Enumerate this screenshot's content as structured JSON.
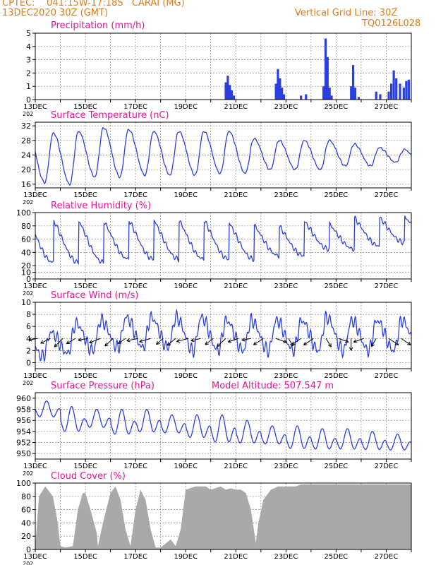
{
  "header": {
    "agency": "CPTEC:",
    "location": "041:15W-17:18S   CARAI (MG)",
    "init_time": "13DEC2020 30Z (GMT)",
    "grid_note": "Vertical Grid Line: 30Z",
    "model_code": "TQ0126L028"
  },
  "x_axis": {
    "day_labels": [
      "13DEC",
      "15DEC",
      "17DEC",
      "19DEC",
      "21DEC",
      "23DEC",
      "25DEC",
      "27DEC"
    ],
    "year_label": "202",
    "start_day": 13,
    "end_day": 28
  },
  "colors": {
    "line": "#2b3fe0",
    "title": "#e8149a",
    "header": "#e07b1a",
    "cloud": "#a9a9a9",
    "grid": "#888888",
    "arrow": "#000000"
  },
  "chart_data": [
    {
      "type": "bar",
      "title": "Precipitation (mm/h)",
      "ylim": [
        0,
        5
      ],
      "y_ticks": [
        "0",
        "1",
        "2",
        "3",
        "4",
        "5"
      ],
      "x_unit": "day of December 2020",
      "points": [
        [
          20.6,
          1.3
        ],
        [
          20.68,
          1.8
        ],
        [
          20.76,
          1.1
        ],
        [
          20.84,
          0.7
        ],
        [
          20.92,
          0.3
        ],
        [
          22.6,
          1.2
        ],
        [
          22.68,
          2.3
        ],
        [
          22.76,
          1.6
        ],
        [
          22.84,
          0.9
        ],
        [
          22.92,
          0.4
        ],
        [
          23.6,
          0.3
        ],
        [
          23.8,
          0.4
        ],
        [
          24.5,
          1.0
        ],
        [
          24.58,
          4.6
        ],
        [
          24.66,
          3.2
        ],
        [
          24.74,
          0.9
        ],
        [
          24.82,
          0.3
        ],
        [
          25.6,
          1.0
        ],
        [
          25.68,
          2.6
        ],
        [
          25.76,
          0.9
        ],
        [
          25.9,
          0.2
        ],
        [
          26.6,
          0.6
        ],
        [
          26.76,
          0.4
        ],
        [
          27.1,
          0.6
        ],
        [
          27.2,
          1.2
        ],
        [
          27.3,
          2.2
        ],
        [
          27.4,
          1.6
        ],
        [
          27.55,
          1.2
        ],
        [
          27.7,
          0.9
        ],
        [
          27.8,
          1.4
        ],
        [
          27.9,
          1.5
        ]
      ]
    },
    {
      "type": "line",
      "title": "Surface Temperature (nC)",
      "ylim": [
        15,
        33
      ],
      "y_ticks": [
        "16",
        "20",
        "24",
        "28",
        "32"
      ],
      "x_unit": "day of December 2020",
      "daily_min": [
        16.5,
        16,
        18,
        18,
        18.5,
        18.5,
        18.5,
        19,
        19,
        20,
        20,
        20,
        21,
        21,
        22,
        21
      ],
      "daily_max": [
        30,
        30.5,
        31.5,
        31,
        30.5,
        30.5,
        30.5,
        30.5,
        28.5,
        28,
        28,
        28,
        27,
        26,
        25.5
      ]
    },
    {
      "type": "line",
      "title": "Relative Humidity (%)",
      "ylim": [
        0,
        100
      ],
      "y_ticks": [
        "0",
        "10",
        "20",
        "40",
        "60",
        "80",
        "100"
      ],
      "x_unit": "day of December 2020",
      "daily_min": [
        25,
        25,
        25,
        30,
        30,
        30,
        30,
        30,
        30,
        35,
        35,
        45,
        45,
        50,
        55,
        60
      ],
      "daily_max": [
        100,
        100,
        98,
        100,
        100,
        100,
        100,
        95,
        90,
        88,
        95,
        90,
        100,
        100,
        100
      ]
    },
    {
      "type": "line",
      "title": "Surface Wind (m/s)",
      "ylim": [
        -1,
        10
      ],
      "y_ticks": [
        "0",
        "2",
        "4",
        "6",
        "8",
        "10"
      ],
      "x_unit": "day of December 2020",
      "speed_min": [
        1,
        1.5,
        2,
        2.5,
        2.5,
        2.5,
        2,
        2,
        2,
        2,
        2,
        2,
        2,
        2,
        2,
        2
      ],
      "speed_max": [
        5,
        6.5,
        7,
        7.5,
        7.5,
        7.5,
        7.5,
        7,
        7,
        7,
        7,
        7.5,
        7,
        7,
        7
      ]
    },
    {
      "type": "line",
      "title": "Surface Pressure (hPa)",
      "annotation": "Model Altitude: 507.547 m",
      "ylim": [
        949,
        961
      ],
      "y_ticks": [
        "950",
        "952",
        "954",
        "956",
        "958",
        "960"
      ],
      "x_unit": "day of December 2020",
      "daily_high": [
        959.5,
        958.5,
        958,
        958,
        958,
        957,
        957,
        957,
        956,
        955,
        955,
        954.5,
        954.5,
        954,
        953.5,
        953
      ],
      "daily_low": [
        956,
        953,
        954,
        952.5,
        953,
        953,
        952,
        951,
        951,
        951,
        950,
        950,
        950,
        950,
        950,
        950
      ]
    },
    {
      "type": "area",
      "title": "Cloud Cover (%)",
      "ylim": [
        0,
        100
      ],
      "y_ticks": [
        "0",
        "20",
        "40",
        "60",
        "80",
        "100"
      ],
      "x_unit": "day of December 2020",
      "points": [
        [
          13.0,
          5
        ],
        [
          13.15,
          80
        ],
        [
          13.4,
          95
        ],
        [
          13.7,
          80
        ],
        [
          13.9,
          40
        ],
        [
          14.0,
          5
        ],
        [
          14.2,
          3
        ],
        [
          14.5,
          5
        ],
        [
          14.7,
          60
        ],
        [
          14.9,
          85
        ],
        [
          15.0,
          85
        ],
        [
          15.2,
          60
        ],
        [
          15.45,
          25
        ],
        [
          15.5,
          5
        ],
        [
          15.7,
          40
        ],
        [
          16.0,
          85
        ],
        [
          16.2,
          95
        ],
        [
          16.4,
          75
        ],
        [
          16.6,
          30
        ],
        [
          16.8,
          5
        ],
        [
          17.0,
          60
        ],
        [
          17.2,
          90
        ],
        [
          17.4,
          75
        ],
        [
          17.6,
          30
        ],
        [
          17.8,
          3
        ],
        [
          18.0,
          3
        ],
        [
          18.4,
          15
        ],
        [
          18.6,
          5
        ],
        [
          18.8,
          30
        ],
        [
          19.0,
          90
        ],
        [
          19.4,
          95
        ],
        [
          19.8,
          95
        ],
        [
          20.0,
          90
        ],
        [
          20.4,
          95
        ],
        [
          20.6,
          90
        ],
        [
          20.8,
          92
        ],
        [
          21.0,
          90
        ],
        [
          21.2,
          90
        ],
        [
          21.4,
          85
        ],
        [
          21.6,
          60
        ],
        [
          21.8,
          10
        ],
        [
          21.9,
          40
        ],
        [
          22.1,
          75
        ],
        [
          22.4,
          90
        ],
        [
          22.7,
          95
        ],
        [
          23.0,
          95
        ],
        [
          23.4,
          95
        ],
        [
          23.6,
          98
        ],
        [
          24.0,
          98
        ],
        [
          25.0,
          98
        ],
        [
          26.0,
          98
        ],
        [
          27.0,
          98
        ],
        [
          28.0,
          98
        ]
      ]
    }
  ]
}
